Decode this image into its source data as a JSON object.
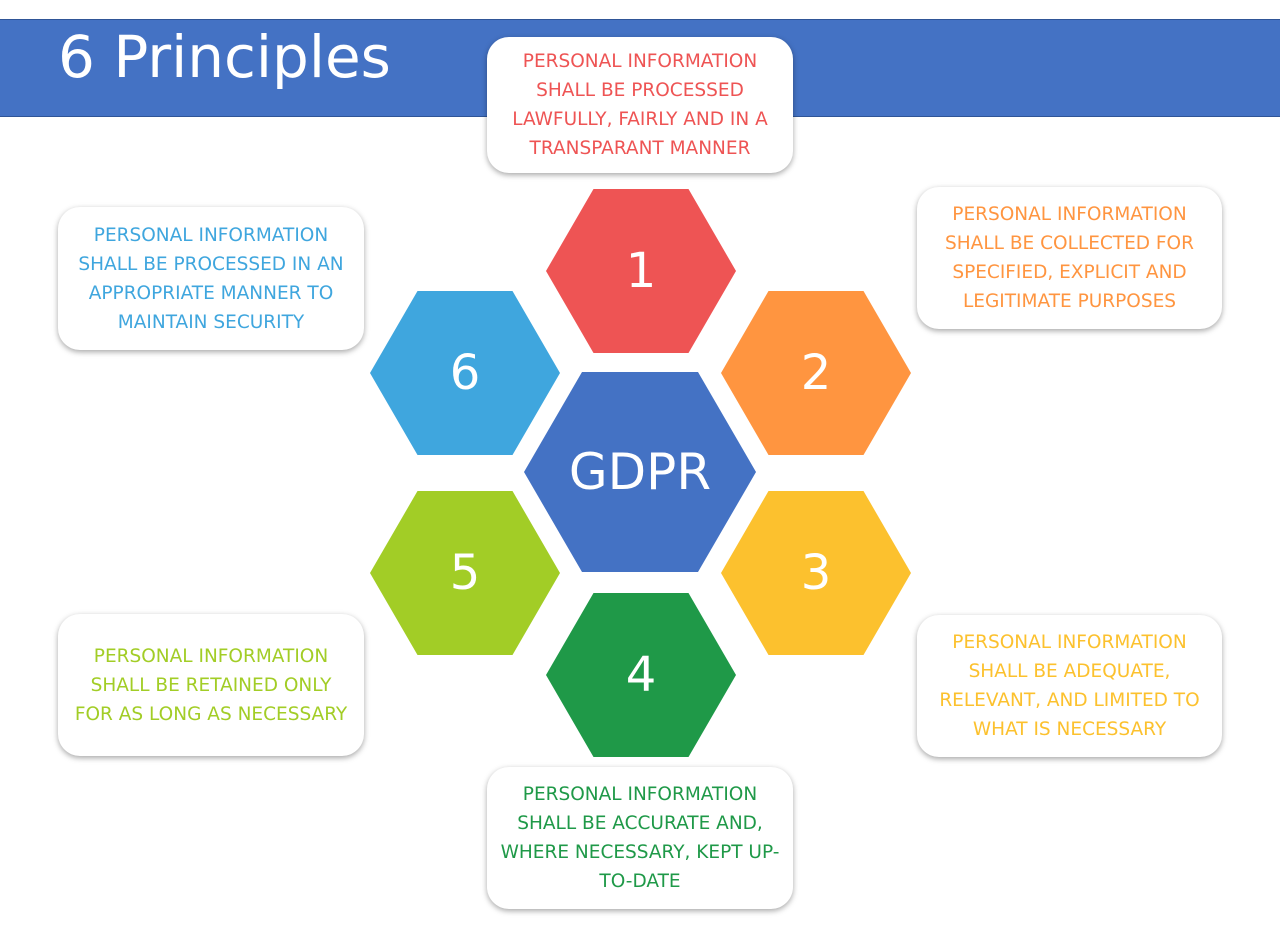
{
  "title": "6 Principles",
  "center": {
    "label": "GDPR",
    "color": "#4472c4"
  },
  "principles": [
    {
      "number": "1",
      "color": "#ee5454",
      "text": "PERSONAL INFORMATION SHALL BE PROCESSED LAWFULLY, FAIRLY AND IN A TRANSPARANT MANNER"
    },
    {
      "number": "2",
      "color": "#ff9540",
      "text": "PERSONAL INFORMATION SHALL BE COLLECTED FOR SPECIFIED, EXPLICIT AND LEGITIMATE PURPOSES"
    },
    {
      "number": "3",
      "color": "#fcc12e",
      "text": "PERSONAL INFORMATION SHALL BE ADEQUATE, RELEVANT, AND LIMITED TO WHAT IS NECESSARY"
    },
    {
      "number": "4",
      "color": "#1f9948",
      "text": "PERSONAL INFORMATION SHALL BE ACCURATE AND, WHERE NECESSARY, KEPT UP-TO-DATE"
    },
    {
      "number": "5",
      "color": "#a2cd26",
      "text": "PERSONAL INFORMATION SHALL BE RETAINED ONLY FOR AS LONG AS NECESSARY"
    },
    {
      "number": "6",
      "color": "#3fa6de",
      "text": "PERSONAL INFORMATION SHALL BE PROCESSED IN AN APPROPRIATE MANNER TO MAINTAIN SECURITY"
    }
  ]
}
